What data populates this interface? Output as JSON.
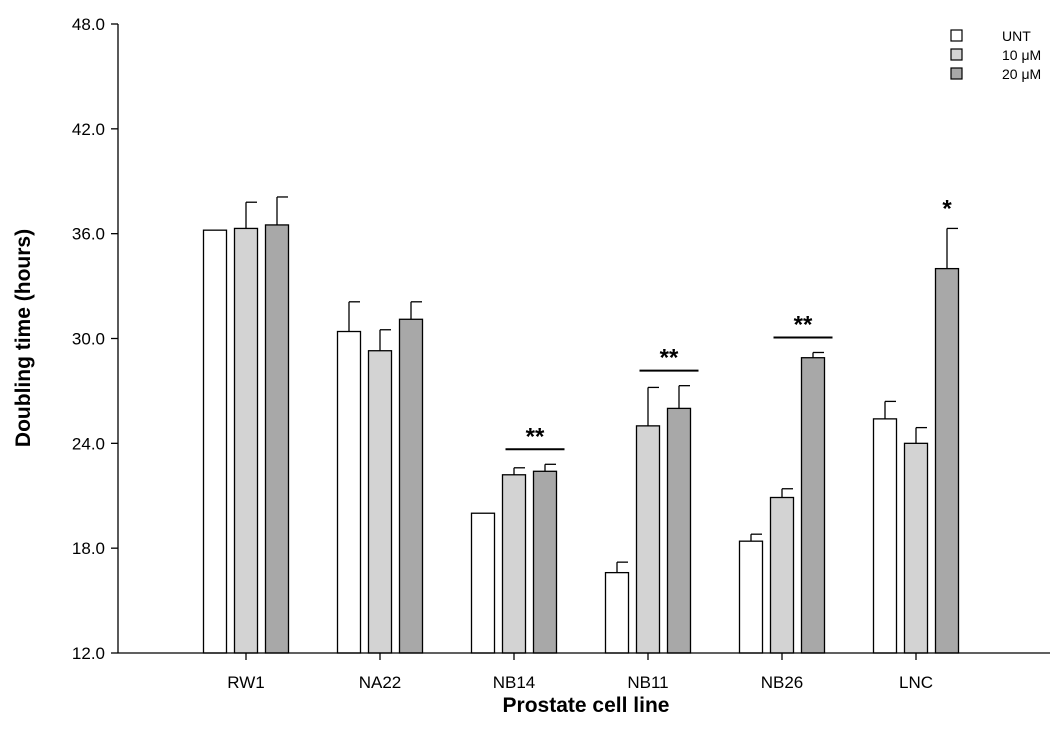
{
  "chart_data": {
    "type": "bar",
    "title": "",
    "xlabel": "Prostate cell line",
    "ylabel": "Doubling time (hours)",
    "ylim": [
      12.0,
      48.0
    ],
    "yticks": [
      "12.0",
      "18.0",
      "24.0",
      "30.0",
      "36.0",
      "42.0",
      "48.0"
    ],
    "categories": [
      "RW1",
      "NA22",
      "NB14",
      "NB11",
      "NB26",
      "LNC"
    ],
    "series": [
      {
        "name": "UNT",
        "color": "#ffffff",
        "values": [
          36.2,
          30.4,
          20.0,
          16.6,
          18.4,
          25.4
        ],
        "errors": [
          0.0,
          1.7,
          0.0,
          0.6,
          0.4,
          1.0
        ]
      },
      {
        "name": "10 μM",
        "color": "#d3d3d3",
        "values": [
          36.3,
          29.3,
          22.2,
          25.0,
          20.9,
          24.0
        ],
        "errors": [
          1.5,
          1.2,
          0.4,
          2.2,
          0.5,
          0.9
        ]
      },
      {
        "name": "20 μM",
        "color": "#a8a8a8",
        "values": [
          36.5,
          31.1,
          22.4,
          26.0,
          28.9,
          34.0
        ],
        "errors": [
          1.6,
          1.0,
          0.4,
          1.3,
          0.3,
          2.3
        ]
      }
    ],
    "annotations": [
      {
        "category": "NB14",
        "text": "**",
        "bracket": true
      },
      {
        "category": "NB11",
        "text": "**",
        "bracket": true
      },
      {
        "category": "NB26",
        "text": "**",
        "bracket": true
      },
      {
        "category": "LNC",
        "text": "*",
        "bracket": false
      }
    ],
    "legend": {
      "placement": "top-right"
    },
    "grid": false
  }
}
